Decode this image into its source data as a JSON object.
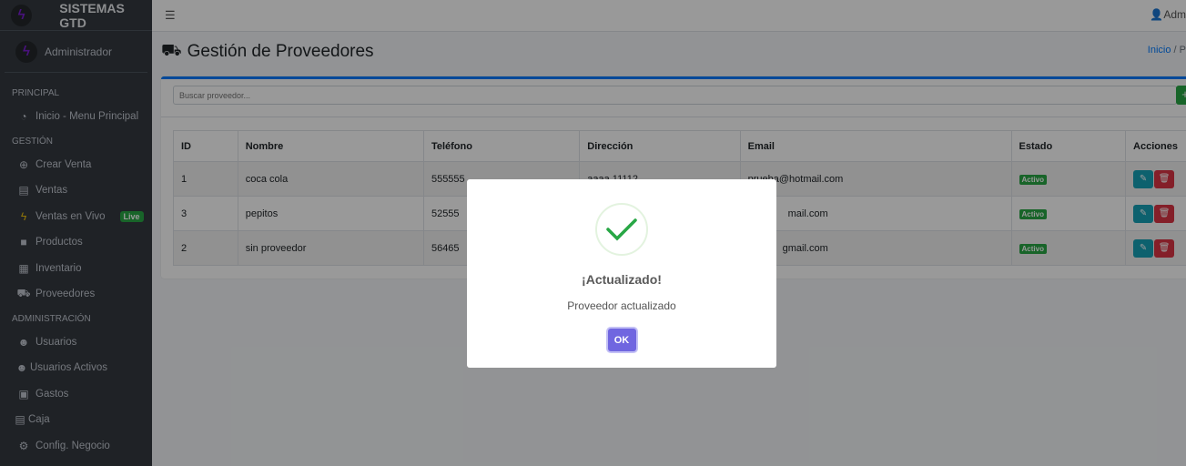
{
  "sidebar": {
    "brand": "SISTEMAS GTD",
    "user": "Administrador",
    "sections": [
      "PRINCIPAL",
      "GESTIÓN",
      "ADMINISTRACIÓN"
    ],
    "items": [
      {
        "label": "Inicio - Menu Principal",
        "icon": "tachometer-icon"
      },
      {
        "label": "Crear Venta",
        "icon": "plus-circle-icon"
      },
      {
        "label": "Ventas",
        "icon": "cash-register-icon"
      },
      {
        "label": "Ventas en Vivo",
        "icon": "bolt-icon",
        "badge": "Live"
      },
      {
        "label": "Productos",
        "icon": "box-icon"
      },
      {
        "label": "Inventario",
        "icon": "warehouse-icon"
      },
      {
        "label": "Proveedores",
        "icon": "truck-icon"
      },
      {
        "label": "Usuarios",
        "icon": "user-cog-icon"
      },
      {
        "label": "Usuarios Activos",
        "icon": "users-icon"
      },
      {
        "label": "Gastos",
        "icon": "money-bill-icon"
      },
      {
        "label": "Caja",
        "icon": "cash-register-icon"
      },
      {
        "label": "Config. Negocio",
        "icon": "cogs-icon"
      }
    ]
  },
  "topbar": {
    "user": "Adm"
  },
  "page": {
    "title": "Gestión de Proveedores",
    "breadcrumb": [
      "Inicio",
      "/",
      "P"
    ]
  },
  "search": {
    "placeholder": "Buscar proveedor...",
    "add_label": "+"
  },
  "table": {
    "headers": [
      "ID",
      "Nombre",
      "Teléfono",
      "Dirección",
      "Email",
      "Estado",
      "Acciones"
    ],
    "rows": [
      [
        "1",
        "coca cola",
        "555555",
        "aaaa 11112",
        "prueba@hotmail.com",
        "Activo"
      ],
      [
        "3",
        "pepitos",
        "52555",
        "",
        "mail.com",
        "Activo"
      ],
      [
        "2",
        "sin proveedor",
        "56465",
        "",
        "gmail.com",
        "Activo"
      ]
    ]
  },
  "modal": {
    "title": "¡Actualizado!",
    "message": "Proveedor actualizado",
    "ok": "OK"
  },
  "colors": {
    "primary": "#007bff",
    "success": "#28a745",
    "info": "#17a2b8",
    "danger": "#dc3545",
    "confirm": "#7066e0"
  }
}
